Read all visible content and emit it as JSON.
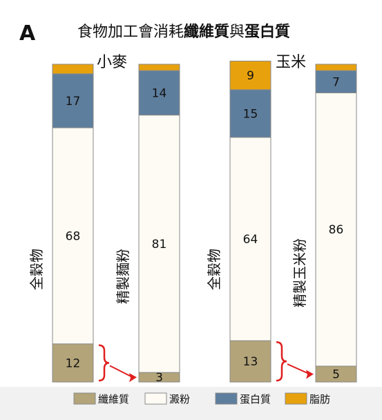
{
  "panel_letter": "A",
  "title": {
    "part1": "食物加工會消耗",
    "part2": "纖維質",
    "part3": "與",
    "part4": "蛋白質"
  },
  "colors": {
    "fiber": "#b3a479",
    "starch": "#fdfbf3",
    "protein": "#5e7e9d",
    "fat": "#e7a10d",
    "arrow": "#e01e1e",
    "bar_stroke": "#8a8a8a",
    "legend_bg": "#f1f1f1"
  },
  "chart_data": {
    "type": "bar",
    "stacked": true,
    "orientation": "vertical",
    "unit": "percent",
    "groups": [
      {
        "name": "小麥",
        "bars": [
          {
            "label": "全穀物",
            "values": {
              "fiber": 12,
              "starch": 68,
              "protein": 17,
              "fat": 3
            },
            "printed": {
              "fiber": "12",
              "starch": "68",
              "protein": "17",
              "fat": ""
            }
          },
          {
            "label": "精製麵粉",
            "values": {
              "fiber": 3,
              "starch": 81,
              "protein": 14,
              "fat": 2
            },
            "printed": {
              "fiber": "3",
              "starch": "81",
              "protein": "14",
              "fat": ""
            }
          }
        ]
      },
      {
        "name": "玉米",
        "bars": [
          {
            "label": "全穀物",
            "values": {
              "fiber": 13,
              "starch": 64,
              "protein": 15,
              "fat": 9
            },
            "printed": {
              "fiber": "13",
              "starch": "64",
              "protein": "15",
              "fat": "9"
            }
          },
          {
            "label": "精製玉米粉",
            "values": {
              "fiber": 5,
              "starch": 86,
              "protein": 7,
              "fat": 2
            },
            "printed": {
              "fiber": "5",
              "starch": "86",
              "protein": "7",
              "fat": ""
            }
          }
        ]
      }
    ],
    "series": [
      {
        "key": "fiber",
        "name": "纖維質"
      },
      {
        "key": "starch",
        "name": "澱粉"
      },
      {
        "key": "protein",
        "name": "蛋白質"
      },
      {
        "key": "fat",
        "name": "脂肪"
      }
    ],
    "legend_position": "bottom",
    "grid": false
  }
}
